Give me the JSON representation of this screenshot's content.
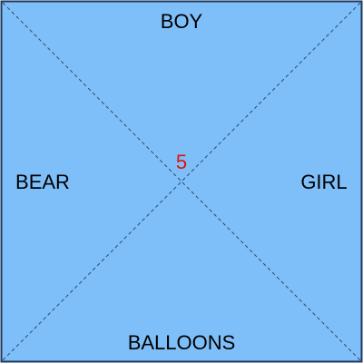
{
  "board": {
    "background_color": "#7fbff9",
    "border_color": "#1f3a5f",
    "diagonal_color": "#2f4a6b",
    "label_color": "#000000",
    "labels": {
      "top": "BOY",
      "left": "BEAR",
      "right": "GIRL",
      "bottom": "BALLOONS"
    },
    "center": {
      "value": "5",
      "color": "#e01010"
    }
  }
}
